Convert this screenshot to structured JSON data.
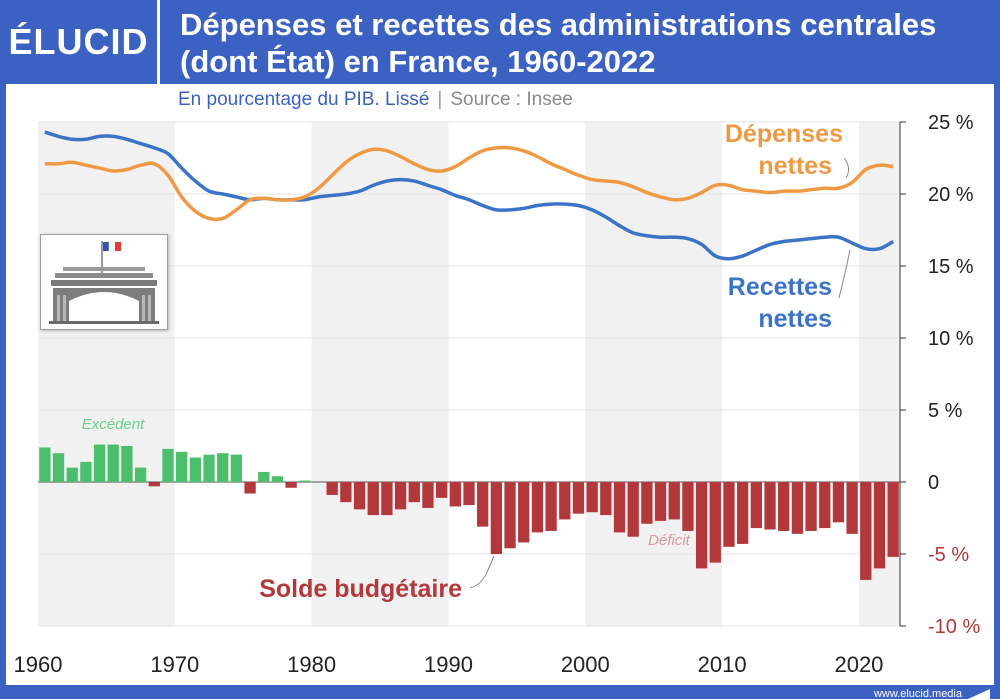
{
  "brand": "ÉLUCID",
  "title_line1": "Dépenses et recettes des administrations centrales",
  "title_line2": "(dont État) en France, 1960-2022",
  "subtitle": "En pourcentage du PIB. Lissé",
  "source": "Source : Insee",
  "footer": "www.elucid.media",
  "colors": {
    "brand_blue": "#3b61c2",
    "depenses": "#ee9a45",
    "recettes": "#3b74c6",
    "excedent": "#4bbf6b",
    "deficit": "#b2383c"
  },
  "chart_data": {
    "type": "line+bar",
    "x_ticks": [
      "1960",
      "1970",
      "1980",
      "1990",
      "2000",
      "2010",
      "2020"
    ],
    "y_ticks": [
      "25 %",
      "20 %",
      "15 %",
      "10 %",
      "5 %",
      "0",
      "-5 %",
      "-10 %"
    ],
    "y_tick_values": [
      25,
      20,
      15,
      10,
      5,
      0,
      -5,
      -10
    ],
    "ylim": [
      -10,
      25
    ],
    "xlim": [
      1960,
      2022
    ],
    "annotations": {
      "excedent": "Excédent",
      "deficit": "Déficit"
    },
    "series": [
      {
        "name": "Dépenses nettes",
        "label_line1": "Dépenses",
        "label_line2": "nettes",
        "type": "line",
        "x": [
          1960,
          1961,
          1962,
          1963,
          1964,
          1965,
          1966,
          1967,
          1968,
          1969,
          1970,
          1971,
          1972,
          1973,
          1974,
          1975,
          1976,
          1977,
          1978,
          1979,
          1980,
          1981,
          1982,
          1983,
          1984,
          1985,
          1986,
          1987,
          1988,
          1989,
          1990,
          1991,
          1992,
          1993,
          1994,
          1995,
          1996,
          1997,
          1998,
          1999,
          2000,
          2001,
          2002,
          2003,
          2004,
          2005,
          2006,
          2007,
          2008,
          2009,
          2010,
          2011,
          2012,
          2013,
          2014,
          2015,
          2016,
          2017,
          2018,
          2019,
          2020,
          2021,
          2022
        ],
        "values": [
          22.1,
          22.1,
          22.2,
          22.0,
          21.8,
          21.6,
          21.7,
          22.0,
          22.1,
          21.3,
          19.8,
          18.8,
          18.3,
          18.3,
          18.9,
          19.6,
          19.7,
          19.6,
          19.6,
          19.8,
          20.4,
          21.3,
          22.2,
          22.8,
          23.1,
          23.0,
          22.6,
          22.1,
          21.7,
          21.6,
          21.9,
          22.5,
          23.0,
          23.2,
          23.2,
          23.0,
          22.6,
          22.1,
          21.7,
          21.3,
          21.0,
          20.9,
          20.8,
          20.5,
          20.1,
          19.8,
          19.6,
          19.7,
          20.1,
          20.6,
          20.6,
          20.3,
          20.2,
          20.1,
          20.2,
          20.2,
          20.3,
          20.4,
          20.4,
          20.8,
          21.7,
          22.0,
          21.9
        ]
      },
      {
        "name": "Recettes nettes",
        "label_line1": "Recettes",
        "label_line2": "nettes",
        "type": "line",
        "x": [
          1960,
          1961,
          1962,
          1963,
          1964,
          1965,
          1966,
          1967,
          1968,
          1969,
          1970,
          1971,
          1972,
          1973,
          1974,
          1975,
          1976,
          1977,
          1978,
          1979,
          1980,
          1981,
          1982,
          1983,
          1984,
          1985,
          1986,
          1987,
          1988,
          1989,
          1990,
          1991,
          1992,
          1993,
          1994,
          1995,
          1996,
          1997,
          1998,
          1999,
          2000,
          2001,
          2002,
          2003,
          2004,
          2005,
          2006,
          2007,
          2008,
          2009,
          2010,
          2011,
          2012,
          2013,
          2014,
          2015,
          2016,
          2017,
          2018,
          2019,
          2020,
          2021,
          2022
        ],
        "values": [
          24.3,
          24.0,
          23.8,
          23.8,
          24.0,
          24.0,
          23.8,
          23.5,
          23.2,
          22.8,
          21.8,
          20.9,
          20.2,
          20.0,
          19.8,
          19.6,
          19.7,
          19.6,
          19.6,
          19.6,
          19.8,
          19.9,
          20.0,
          20.2,
          20.6,
          20.9,
          21.0,
          20.9,
          20.6,
          20.3,
          19.9,
          19.6,
          19.2,
          18.9,
          18.9,
          19.0,
          19.2,
          19.3,
          19.3,
          19.2,
          18.9,
          18.4,
          17.8,
          17.3,
          17.1,
          17.0,
          17.0,
          16.9,
          16.5,
          15.7,
          15.5,
          15.7,
          16.1,
          16.5,
          16.7,
          16.8,
          16.9,
          17.0,
          17.0,
          16.6,
          16.2,
          16.2,
          16.7
        ]
      },
      {
        "name": "Solde budgétaire",
        "type": "bar",
        "x": [
          1960,
          1961,
          1962,
          1963,
          1964,
          1965,
          1966,
          1967,
          1968,
          1969,
          1970,
          1971,
          1972,
          1973,
          1974,
          1975,
          1976,
          1977,
          1978,
          1979,
          1980,
          1981,
          1982,
          1983,
          1984,
          1985,
          1986,
          1987,
          1988,
          1989,
          1990,
          1991,
          1992,
          1993,
          1994,
          1995,
          1996,
          1997,
          1998,
          1999,
          2000,
          2001,
          2002,
          2003,
          2004,
          2005,
          2006,
          2007,
          2008,
          2009,
          2010,
          2011,
          2012,
          2013,
          2014,
          2015,
          2016,
          2017,
          2018,
          2019,
          2020,
          2021,
          2022
        ],
        "values": [
          2.4,
          2.0,
          1.0,
          1.4,
          2.6,
          2.6,
          2.5,
          1.0,
          -0.3,
          2.3,
          2.1,
          1.7,
          1.9,
          2.0,
          1.9,
          -0.8,
          0.7,
          0.4,
          -0.4,
          0.1,
          0.0,
          -0.9,
          -1.4,
          -1.9,
          -2.3,
          -2.3,
          -1.9,
          -1.4,
          -1.8,
          -1.1,
          -1.7,
          -1.6,
          -3.1,
          -5.0,
          -4.6,
          -4.2,
          -3.5,
          -3.4,
          -2.6,
          -2.2,
          -2.1,
          -2.3,
          -3.5,
          -3.8,
          -2.9,
          -2.7,
          -2.6,
          -3.4,
          -6.0,
          -5.6,
          -4.5,
          -4.3,
          -3.2,
          -3.3,
          -3.4,
          -3.6,
          -3.4,
          -3.2,
          -2.8,
          -3.6,
          -6.8,
          -6.0,
          -5.2
        ]
      }
    ]
  }
}
